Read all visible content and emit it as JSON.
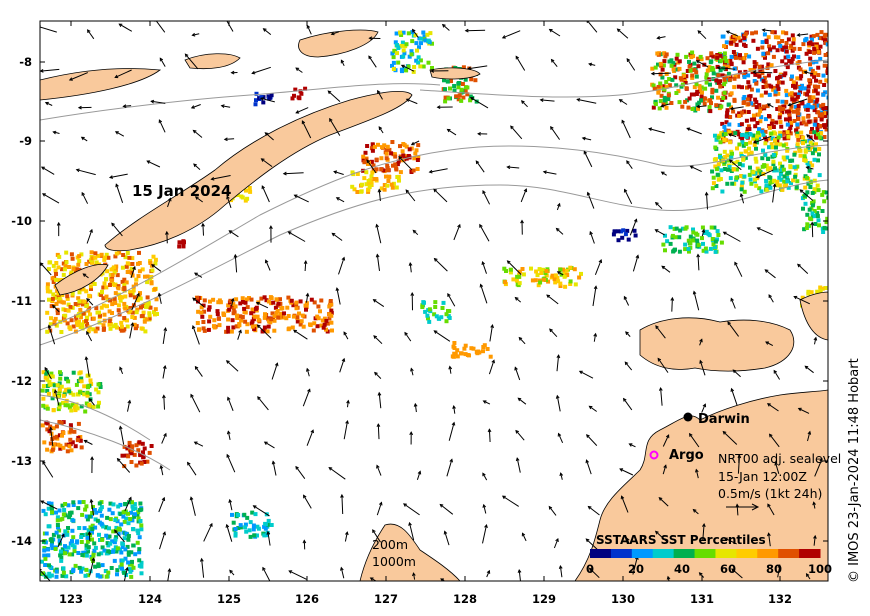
{
  "map": {
    "date_label": "15 Jan 2024",
    "credit": "© IMOS 23-Jan-2024 11:48 Hobart",
    "x_ticks": [
      "123",
      "124",
      "125",
      "126",
      "127",
      "128",
      "129",
      "130",
      "131",
      "132"
    ],
    "y_ticks": [
      "-8",
      "-9",
      "-10",
      "-11",
      "-12",
      "-13",
      "-14"
    ],
    "places": [
      {
        "name": "Darwin",
        "marker": "black-dot"
      },
      {
        "name": "Argo",
        "marker": "magenta-ring"
      }
    ],
    "current_info": {
      "line1": "NRT00 adj. sealevel",
      "line2": "15-Jan 12:00Z",
      "line3": "0.5m/s (1kt 24h)"
    },
    "depth_labels": [
      "200m",
      "1000m"
    ],
    "colorbar": {
      "title": "SSTAARS SST Percentiles",
      "ticks": [
        "0",
        "20",
        "40",
        "60",
        "80",
        "100"
      ],
      "colors": [
        "#000080",
        "#0033cc",
        "#0099ff",
        "#00cccc",
        "#00b050",
        "#66dd00",
        "#e6e600",
        "#ffcc00",
        "#ff9900",
        "#e05000",
        "#b00000"
      ]
    },
    "colors": {
      "land": "#f9c99c",
      "frame": "#000000",
      "contour": "#999999"
    }
  }
}
